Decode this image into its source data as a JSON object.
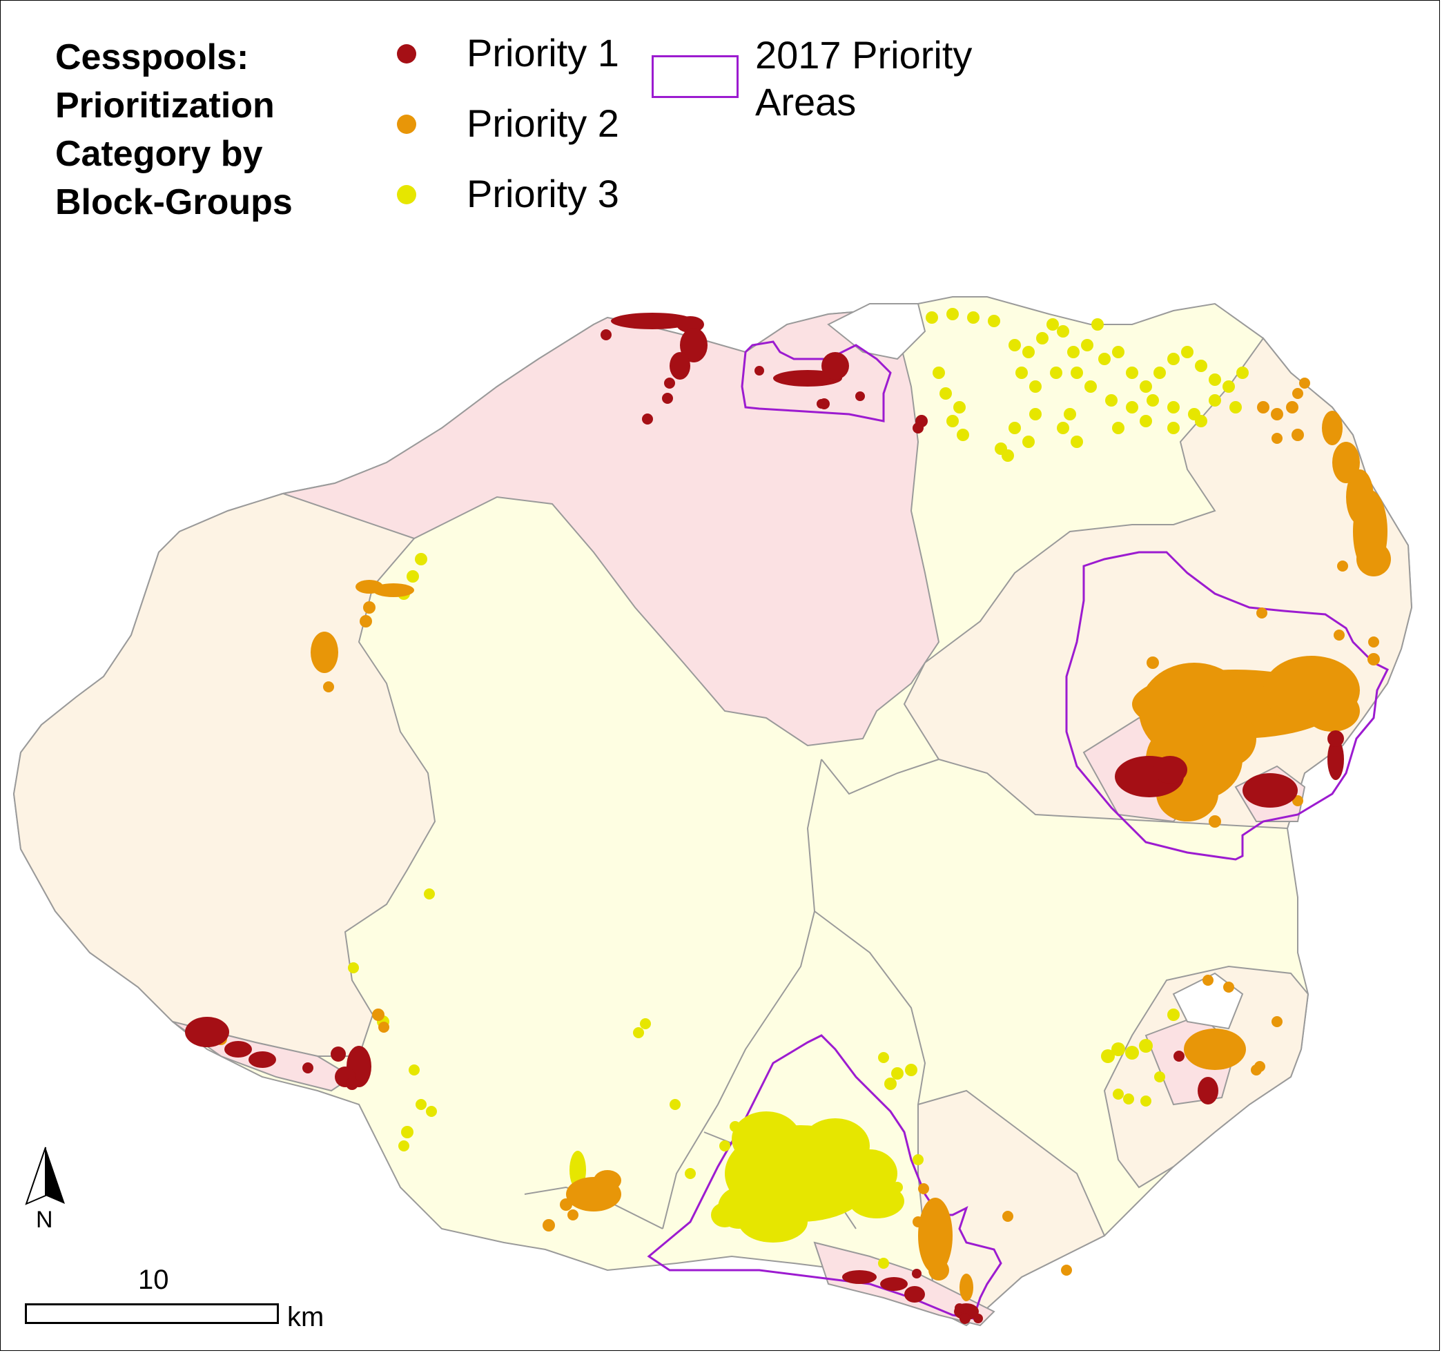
{
  "legend": {
    "title_lines": [
      "Cesspools:",
      "Prioritization",
      "Category by",
      "Block-Groups"
    ],
    "priority1_label": "Priority 1",
    "priority2_label": "Priority 2",
    "priority3_label": "Priority 3",
    "area_label_line1": "2017 Priority",
    "area_label_line2": "Areas"
  },
  "colors": {
    "priority1": "#a50f15",
    "priority2": "#e89608",
    "priority3": "#e6e600",
    "area_outline": "#9c1bd0",
    "region_pink": "#fbe1e3",
    "region_peach": "#fdf3e4",
    "region_cream": "#fefee2",
    "region_white": "#ffffff",
    "boundary": "#9a9a9a"
  },
  "scale_bar": {
    "value_label": "10",
    "unit_label": "km"
  },
  "north_arrow": {
    "label": "N"
  }
}
